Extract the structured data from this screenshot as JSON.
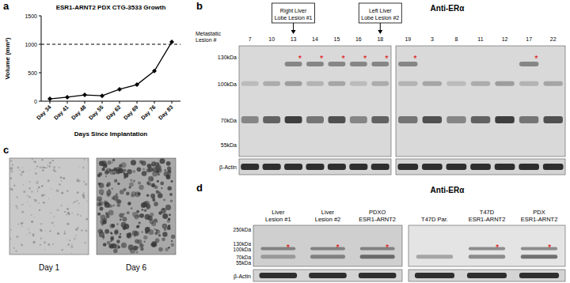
{
  "chart_data": {
    "type": "line",
    "title": "ESR1-ARNT2 PDX CTG-3533 Growth",
    "x_label": "Days Since Implantation",
    "y_label": "Volume (mm³)",
    "categories": [
      "Day 34",
      "Day 41",
      "Day 48",
      "Day 55",
      "Day 62",
      "Day 69",
      "Day 76",
      "Day 83"
    ],
    "values": [
      40,
      70,
      110,
      95,
      210,
      290,
      530,
      1040
    ],
    "color": "#000000",
    "marker": "diamond",
    "line_style": "solid",
    "ylim": [
      0,
      1500
    ],
    "yticks": [
      0,
      500,
      1000,
      1500
    ],
    "reference_line": 1000
  },
  "panel_a": {
    "label": "a"
  },
  "panel_b": {
    "label": "b",
    "title": "Anti-ERα",
    "lane_axis_label": "Metastatic Lesion #",
    "asterisk": "*",
    "loading_control": "β-Actin",
    "mw_markers": [
      {
        "label": "130kDa",
        "kda": 130
      },
      {
        "label": "100kDa",
        "kda": 100
      },
      {
        "label": "70kDa",
        "kda": 70
      },
      {
        "label": "55kDa",
        "kda": 55
      }
    ],
    "blots": [
      {
        "lanes": [
          {
            "label": "7",
            "asterisk": false
          },
          {
            "label": "10",
            "asterisk": false
          },
          {
            "label": "13",
            "asterisk": true
          },
          {
            "label": "14",
            "asterisk": true
          },
          {
            "label": "15",
            "asterisk": true
          },
          {
            "label": "16",
            "asterisk": true
          },
          {
            "label": "18",
            "asterisk": true
          }
        ]
      },
      {
        "lanes": [
          {
            "label": "19",
            "asterisk": true
          },
          {
            "label": "3",
            "asterisk": false
          },
          {
            "label": "8",
            "asterisk": false
          },
          {
            "label": "11",
            "asterisk": false
          },
          {
            "label": "12",
            "asterisk": false
          },
          {
            "label": "17",
            "asterisk": true
          },
          {
            "label": "22",
            "asterisk": false
          }
        ]
      }
    ],
    "callouts": [
      {
        "text": "Right Liver Lobe Lesion #1",
        "lane": "13"
      },
      {
        "text": "Left Liver Lobe Lesion #2",
        "lane": "18"
      }
    ]
  },
  "panel_c": {
    "label": "c",
    "images": [
      {
        "caption": "Day 1"
      },
      {
        "caption": "Day 6"
      }
    ]
  },
  "panel_d": {
    "label": "d",
    "title": "Anti-ERα",
    "asterisk": "*",
    "loading_control": "β-Actin",
    "mw_markers": [
      {
        "label": "250kDa",
        "kda": 250
      },
      {
        "label": "130kDa",
        "kda": 130
      },
      {
        "label": "100kDa",
        "kda": 100
      },
      {
        "label": "70kDa",
        "kda": 70
      },
      {
        "label": "55kDa",
        "kda": 55
      }
    ],
    "blots": [
      {
        "lanes": [
          {
            "label": "Liver Lesion #1",
            "asterisk": true
          },
          {
            "label": "Liver Lesion #2",
            "asterisk": true
          },
          {
            "label": "PDXO ESR1-ARNT2",
            "asterisk": true
          }
        ]
      },
      {
        "lanes": [
          {
            "label": "T47D Par.",
            "asterisk": false
          },
          {
            "label": "T47D ESR1-ARNT2",
            "asterisk": true
          },
          {
            "label": "PDX ESR1-ARNT2",
            "asterisk": true
          }
        ]
      }
    ]
  }
}
